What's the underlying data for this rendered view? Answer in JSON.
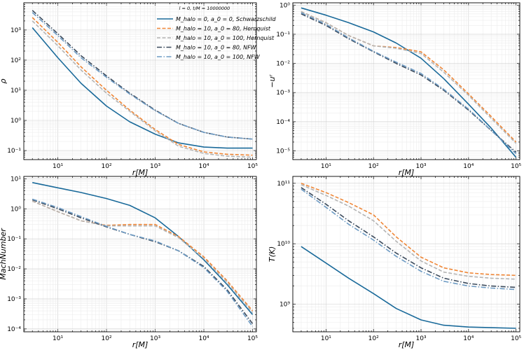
{
  "legend": {
    "title": "l = 0, t/M = 10000000",
    "entries": [
      {
        "label": "M_halo = 0, a_0 = 0, Schwarzschild",
        "color": "#1a6a9a",
        "dash": "solid"
      },
      {
        "label": "M_halo = 10, a_0 = 80, Hernquist",
        "color": "#ef8636",
        "dash": "dashed"
      },
      {
        "label": "M_halo = 10, a_0 = 100, Hernquist",
        "color": "#b4b4b4",
        "dash": "dashed"
      },
      {
        "label": "M_halo = 10, a_0 = 80, NFW",
        "color": "#3b4a5c",
        "dash": "dashdot"
      },
      {
        "label": "M_halo = 10, a_0 = 100, NFW",
        "color": "#6d9bc4",
        "dash": "dashdot"
      }
    ]
  },
  "chart_data": [
    {
      "type": "line",
      "title": "",
      "xlabel": "r[M]",
      "ylabel": "ρ",
      "xscale": "log",
      "yscale": "log",
      "xlim": [
        2,
        120000
      ],
      "ylim": [
        0.05,
        8000
      ],
      "yticks": [
        {
          "v": 0.1,
          "label": "10⁻¹"
        },
        {
          "v": 1,
          "label": "10⁰"
        },
        {
          "v": 10,
          "label": "10¹"
        },
        {
          "v": 100,
          "label": "10²"
        },
        {
          "v": 1000,
          "label": "10³"
        }
      ],
      "xticks": [
        {
          "v": 10,
          "label": "10¹"
        },
        {
          "v": 100,
          "label": "10²"
        },
        {
          "v": 1000,
          "label": "10³"
        },
        {
          "v": 10000,
          "label": "10⁴"
        },
        {
          "v": 100000,
          "label": "10⁵"
        }
      ],
      "series": [
        {
          "name": "Schwarzschild",
          "x": [
            3,
            10,
            30,
            100,
            300,
            1000,
            3000,
            10000,
            30000,
            100000
          ],
          "y": [
            1200,
            120,
            17,
            3.0,
            0.9,
            0.35,
            0.18,
            0.13,
            0.12,
            0.12
          ]
        },
        {
          "name": "Hernquist a0=80",
          "x": [
            3,
            10,
            30,
            100,
            300,
            1000,
            3000,
            10000,
            30000,
            100000
          ],
          "y": [
            2600,
            390,
            60,
            10,
            2.2,
            0.5,
            0.16,
            0.09,
            0.075,
            0.07
          ]
        },
        {
          "name": "Hernquist a0=100",
          "x": [
            3,
            10,
            30,
            100,
            300,
            1000,
            3000,
            10000,
            30000,
            100000
          ],
          "y": [
            2000,
            300,
            47,
            8,
            2.0,
            0.45,
            0.14,
            0.08,
            0.065,
            0.06
          ]
        },
        {
          "name": "NFW a0=80",
          "x": [
            3,
            10,
            30,
            100,
            300,
            1000,
            3000,
            10000,
            30000,
            100000
          ],
          "y": [
            4500,
            750,
            140,
            30,
            8,
            2.2,
            0.8,
            0.4,
            0.28,
            0.24
          ]
        },
        {
          "name": "NFW a0=100",
          "x": [
            3,
            10,
            30,
            100,
            300,
            1000,
            3000,
            10000,
            30000,
            100000
          ],
          "y": [
            3800,
            650,
            120,
            27,
            7.5,
            2.1,
            0.8,
            0.4,
            0.28,
            0.24
          ]
        }
      ]
    },
    {
      "type": "line",
      "title": "",
      "xlabel": "r[M]",
      "ylabel": "−uʳ",
      "xscale": "log",
      "yscale": "log",
      "xlim": [
        2,
        120000
      ],
      "ylim": [
        5e-06,
        1.2
      ],
      "yticks": [
        {
          "v": 1e-05,
          "label": "10⁻⁵"
        },
        {
          "v": 0.0001,
          "label": "10⁻⁴"
        },
        {
          "v": 0.001,
          "label": "10⁻³"
        },
        {
          "v": 0.01,
          "label": "10⁻²"
        },
        {
          "v": 0.1,
          "label": "10⁻¹"
        },
        {
          "v": 1,
          "label": "10⁰"
        }
      ],
      "xticks": [
        {
          "v": 10,
          "label": "10¹"
        },
        {
          "v": 100,
          "label": "10²"
        },
        {
          "v": 1000,
          "label": "10³"
        },
        {
          "v": 10000,
          "label": "10⁴"
        },
        {
          "v": 100000,
          "label": "10⁵"
        }
      ],
      "series": [
        {
          "name": "Schwarzschild",
          "x": [
            3,
            10,
            30,
            100,
            300,
            1000,
            3000,
            10000,
            30000,
            100000
          ],
          "y": [
            0.8,
            0.45,
            0.25,
            0.12,
            0.05,
            0.015,
            0.003,
            0.0004,
            6e-05,
            6e-06
          ]
        },
        {
          "name": "Hernquist a0=80",
          "x": [
            3,
            10,
            30,
            100,
            300,
            1000,
            3000,
            10000,
            30000,
            100000
          ],
          "y": [
            0.6,
            0.25,
            0.09,
            0.04,
            0.035,
            0.025,
            0.006,
            0.0009,
            0.00015,
            2e-05
          ]
        },
        {
          "name": "Hernquist a0=100",
          "x": [
            3,
            10,
            30,
            100,
            300,
            1000,
            3000,
            10000,
            30000,
            100000
          ],
          "y": [
            0.6,
            0.25,
            0.09,
            0.04,
            0.033,
            0.022,
            0.005,
            0.0008,
            0.00013,
            1.8e-05
          ]
        },
        {
          "name": "NFW a0=80",
          "x": [
            3,
            10,
            30,
            100,
            300,
            1000,
            3000,
            10000,
            30000,
            100000
          ],
          "y": [
            0.5,
            0.2,
            0.07,
            0.025,
            0.01,
            0.004,
            0.0012,
            0.00025,
            5e-05,
            9e-06
          ]
        },
        {
          "name": "NFW a0=100",
          "x": [
            3,
            10,
            30,
            100,
            300,
            1000,
            3000,
            10000,
            30000,
            100000
          ],
          "y": [
            0.55,
            0.22,
            0.075,
            0.026,
            0.011,
            0.0045,
            0.0013,
            0.00027,
            5e-05,
            8e-06
          ]
        }
      ]
    },
    {
      "type": "line",
      "title": "",
      "xlabel": "r[M]",
      "ylabel": "MachNumber",
      "xscale": "log",
      "yscale": "log",
      "xlim": [
        2,
        120000
      ],
      "ylim": [
        8e-05,
        12
      ],
      "yticks": [
        {
          "v": 0.0001,
          "label": "10⁻⁴"
        },
        {
          "v": 0.001,
          "label": "10⁻³"
        },
        {
          "v": 0.01,
          "label": "10⁻²"
        },
        {
          "v": 0.1,
          "label": "10⁻¹"
        },
        {
          "v": 1,
          "label": "10⁰"
        },
        {
          "v": 10,
          "label": "10¹"
        }
      ],
      "xticks": [
        {
          "v": 10,
          "label": "10¹"
        },
        {
          "v": 100,
          "label": "10²"
        },
        {
          "v": 1000,
          "label": "10³"
        },
        {
          "v": 10000,
          "label": "10⁴"
        },
        {
          "v": 100000,
          "label": "10⁵"
        }
      ],
      "series": [
        {
          "name": "Schwarzschild",
          "x": [
            3,
            10,
            30,
            100,
            300,
            1000,
            3000,
            10000,
            30000,
            100000
          ],
          "y": [
            7.5,
            5.0,
            3.5,
            2.2,
            1.3,
            0.5,
            0.12,
            0.02,
            0.003,
            0.0003
          ]
        },
        {
          "name": "Hernquist a0=80",
          "x": [
            3,
            10,
            30,
            100,
            300,
            1000,
            3000,
            10000,
            30000,
            100000
          ],
          "y": [
            1.8,
            0.8,
            0.4,
            0.28,
            0.3,
            0.3,
            0.12,
            0.025,
            0.004,
            0.0004
          ]
        },
        {
          "name": "Hernquist a0=100",
          "x": [
            3,
            10,
            30,
            100,
            300,
            1000,
            3000,
            10000,
            30000,
            100000
          ],
          "y": [
            1.8,
            0.8,
            0.4,
            0.27,
            0.27,
            0.27,
            0.11,
            0.022,
            0.0035,
            0.00035
          ]
        },
        {
          "name": "NFW a0=80",
          "x": [
            3,
            10,
            30,
            100,
            300,
            1000,
            3000,
            10000,
            30000,
            100000
          ],
          "y": [
            2.0,
            1.0,
            0.5,
            0.25,
            0.14,
            0.08,
            0.04,
            0.012,
            0.002,
            0.00015
          ]
        },
        {
          "name": "NFW a0=100",
          "x": [
            3,
            10,
            30,
            100,
            300,
            1000,
            3000,
            10000,
            30000,
            100000
          ],
          "y": [
            2.1,
            1.1,
            0.55,
            0.26,
            0.14,
            0.085,
            0.04,
            0.011,
            0.0018,
            0.00012
          ]
        }
      ]
    },
    {
      "type": "line",
      "title": "",
      "xlabel": "r[M]",
      "ylabel": "T(K)",
      "xscale": "log",
      "yscale": "log",
      "xlim": [
        2,
        120000
      ],
      "ylim": [
        350000000,
        130000000000
      ],
      "yticks": [
        {
          "v": 1000000000,
          "label": "10⁹"
        },
        {
          "v": 10000000000,
          "label": "10¹⁰"
        },
        {
          "v": 100000000000,
          "label": "10¹¹"
        }
      ],
      "xticks": [
        {
          "v": 10,
          "label": "10¹"
        },
        {
          "v": 100,
          "label": "10²"
        },
        {
          "v": 1000,
          "label": "10³"
        },
        {
          "v": 10000,
          "label": "10⁴"
        },
        {
          "v": 100000,
          "label": "10⁵"
        }
      ],
      "series": [
        {
          "name": "Schwarzschild",
          "x": [
            3,
            10,
            30,
            100,
            300,
            1000,
            3000,
            10000,
            30000,
            100000
          ],
          "y": [
            9000000000,
            4800000000,
            2700000000,
            1500000000,
            850000000,
            550000000,
            450000000,
            420000000,
            410000000,
            400000000
          ]
        },
        {
          "name": "Hernquist a0=80",
          "x": [
            3,
            10,
            30,
            100,
            300,
            1000,
            3000,
            10000,
            30000,
            100000
          ],
          "y": [
            100000000000,
            70000000000,
            48000000000,
            30000000000,
            13000000000,
            6000000000,
            4000000000,
            3300000000,
            3100000000,
            3000000000
          ]
        },
        {
          "name": "Hernquist a0=100",
          "x": [
            3,
            10,
            30,
            100,
            300,
            1000,
            3000,
            10000,
            30000,
            100000
          ],
          "y": [
            95000000000,
            63000000000,
            42000000000,
            24000000000,
            11000000000,
            5200000000,
            3400000000,
            2900000000,
            2700000000,
            2600000000
          ]
        },
        {
          "name": "NFW a0=80",
          "x": [
            3,
            10,
            30,
            100,
            300,
            1000,
            3000,
            10000,
            30000,
            100000
          ],
          "y": [
            85000000000,
            45000000000,
            24000000000,
            13000000000,
            7000000000,
            4000000000,
            2700000000,
            2200000000,
            2000000000,
            1900000000
          ]
        },
        {
          "name": "NFW a0=100",
          "x": [
            3,
            10,
            30,
            100,
            300,
            1000,
            3000,
            10000,
            30000,
            100000
          ],
          "y": [
            80000000000,
            40000000000,
            21000000000,
            11500000000,
            6200000000,
            3500000000,
            2400000000,
            2000000000,
            1850000000,
            1750000000
          ]
        }
      ]
    }
  ]
}
